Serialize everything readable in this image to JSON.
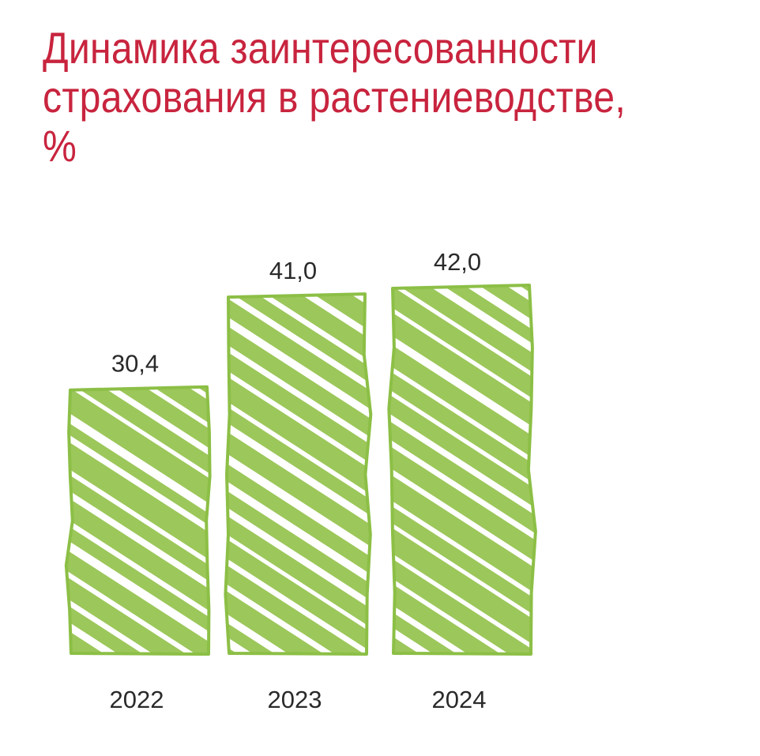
{
  "title_lines": [
    "Динамика заинтересованности",
    "страхования в растениеводстве,",
    "%"
  ],
  "colors": {
    "title": "#c8243e",
    "bar_fill": "#9cc75a",
    "bar_outline": "#8cbf46",
    "text": "#2a2a2a"
  },
  "chart_data": {
    "type": "bar",
    "title": "Динамика заинтересованности страхования в растениеводстве, %",
    "categories": [
      "2022",
      "2023",
      "2024"
    ],
    "values": [
      30.4,
      41.0,
      42.0
    ],
    "value_labels": [
      "30,4",
      "41,0",
      "42,0"
    ],
    "xlabel": "",
    "ylabel": "",
    "ylim": [
      0,
      42.0
    ],
    "grid": false,
    "legend": "none",
    "style": "hand-drawn scribble fill"
  }
}
